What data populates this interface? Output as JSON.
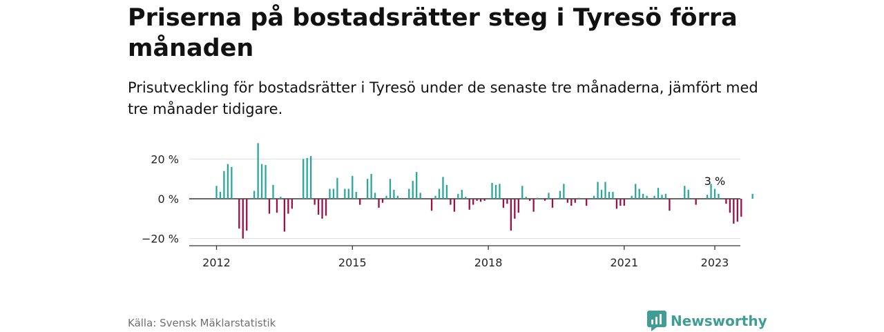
{
  "header": {
    "title": "Priserna på bostadsrätter steg i Tyresö förra månaden",
    "subtitle": "Prisutveckling för bostadsrätter i Tyresö under de senaste tre månaderna, jämfört med tre månader tidigare."
  },
  "footer": {
    "source": "Källa: Svensk Mäklarstatistik",
    "brand": "Newsworthy",
    "brand_icon": "bar-chart-logo-icon"
  },
  "colors": {
    "positive": "#2aa69e",
    "negative": "#9c0f47",
    "brand": "#3f9d95",
    "grid": "#dddddd",
    "axis": "#333333"
  },
  "chart_data": {
    "type": "bar",
    "x_start": "2012-01",
    "x_step": "month",
    "ylim": [
      -24,
      25
    ],
    "yticks": [
      20,
      0,
      -20
    ],
    "ytick_labels": [
      "20 %",
      "0 %",
      "−20 %"
    ],
    "xticks": [
      "2012",
      "2015",
      "2018",
      "2021",
      "2023"
    ],
    "unit": "%",
    "annotation": {
      "label": "3 %",
      "x": "2023-01"
    },
    "grid": true,
    "values": [
      6.5,
      3.5,
      14,
      17.5,
      16,
      0,
      -15,
      -20,
      -16,
      0,
      4,
      28,
      17.5,
      17,
      -7.5,
      7,
      -7,
      1,
      -16.5,
      -7.5,
      -5,
      0,
      0,
      20,
      20.5,
      21.5,
      -3,
      -8,
      -10,
      -8.5,
      5,
      5,
      10.5,
      0,
      5,
      5,
      11.5,
      3.5,
      -3,
      0,
      10,
      12.5,
      3,
      -4.5,
      -2,
      1.5,
      10,
      4.5,
      1.5,
      0,
      0,
      5,
      9,
      13.5,
      3,
      0,
      0,
      -6,
      1.5,
      5,
      11,
      7,
      -3,
      -6.5,
      2.5,
      4.5,
      1,
      -5.5,
      -3,
      -1,
      -1.5,
      -1,
      0,
      8,
      7,
      7.5,
      -4.5,
      -2.5,
      -16,
      -10,
      -7,
      6.5,
      1,
      -1,
      -6.5,
      0.5,
      0,
      -1,
      3,
      -4.5,
      0,
      4,
      7.5,
      -2,
      -3.5,
      -2,
      0.5,
      0,
      -3.5,
      0,
      1.5,
      8.5,
      4.5,
      8.5,
      3.5,
      3.5,
      -5,
      -3.5,
      -3.5,
      0,
      1.5,
      7.5,
      5,
      2.5,
      1.5,
      0,
      1.5,
      5.5,
      2,
      2.5,
      -6,
      0,
      0,
      0,
      6.5,
      4.5,
      0,
      -3,
      0,
      0,
      2,
      7.5,
      5,
      2.5,
      0,
      -2.5,
      -7,
      -12.5,
      -11.5,
      -9,
      0,
      0,
      2.5
    ]
  }
}
